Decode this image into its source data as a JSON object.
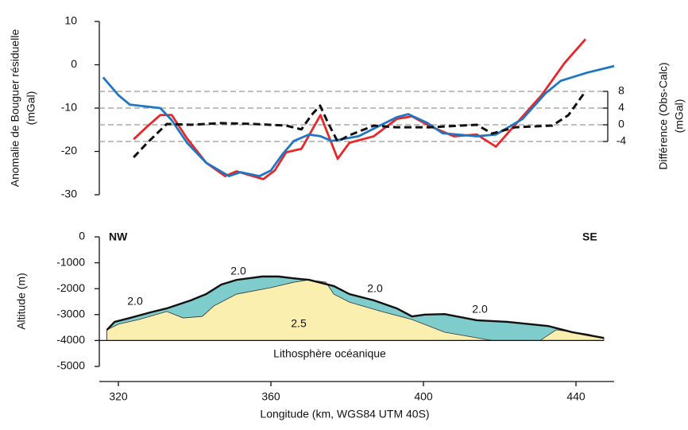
{
  "chart_data": [
    {
      "type": "line",
      "ylabel": [
        "Anomalie de Bouguer résiduelle",
        "(mGal)"
      ],
      "y2label": [
        "Différence (Obs-Calc)",
        "(mGal)"
      ],
      "xlim": [
        315,
        450
      ],
      "ylim": [
        -30,
        10
      ],
      "yticks": [
        10,
        0,
        -10,
        -20,
        -30
      ],
      "y2lim": [
        -4,
        8
      ],
      "y2ticks": [
        8,
        4,
        0,
        -4
      ],
      "y2grid": true,
      "series": [
        {
          "color": "#e8272a",
          "x": [
            324,
            327.5,
            331,
            334,
            338,
            343,
            348,
            351,
            358,
            361,
            364,
            368,
            370,
            373,
            375,
            377.5,
            380.6,
            387,
            393,
            397,
            402,
            408,
            414,
            419,
            423,
            431,
            437,
            442.5
          ],
          "values": [
            -17.2,
            -14.3,
            -11.6,
            -11.6,
            -17,
            -22.6,
            -25.7,
            -24.6,
            -26.4,
            -24.4,
            -20.2,
            -19.4,
            -16.3,
            -11.6,
            -16.1,
            -21.7,
            -18,
            -16.5,
            -12.5,
            -11.9,
            -14.3,
            -16.5,
            -16.1,
            -18.9,
            -14.9,
            -7,
            0.4,
            5.9
          ]
        },
        {
          "color": "#1f77c4",
          "x": [
            316,
            320,
            323,
            331,
            334,
            338,
            343,
            349,
            352,
            357,
            360,
            363,
            366,
            370,
            373,
            376,
            383,
            388,
            393,
            396,
            401,
            405,
            414,
            419,
            426,
            432,
            436,
            443,
            450
          ],
          "values": [
            -2.9,
            -7,
            -9.2,
            -10,
            -12.8,
            -18,
            -22.6,
            -25.7,
            -24.8,
            -25.7,
            -24.4,
            -20.7,
            -17.6,
            -16.1,
            -16.5,
            -17.6,
            -16.5,
            -14.3,
            -12.1,
            -11.4,
            -13.4,
            -15.8,
            -16.5,
            -16.1,
            -12.5,
            -6.6,
            -3.7,
            -1.8,
            -0.3
          ]
        },
        {
          "color": "#111111",
          "dashed": true,
          "axis": "y2",
          "x": [
            324,
            327.5,
            332.7,
            339,
            347,
            355.6,
            364,
            368,
            370.6,
            372.9,
            375,
            377.5,
            380.6,
            387,
            393,
            401.5,
            409.8,
            414,
            418,
            424,
            433.8,
            438,
            442
          ],
          "values": [
            -7.8,
            -4.4,
            0.2,
            0,
            0.4,
            0.2,
            -0.2,
            -1.1,
            2.3,
            4.6,
            0.4,
            -4,
            -2.5,
            -0.2,
            -0.6,
            -0.6,
            -0.2,
            0,
            -2.1,
            -0.6,
            -0.2,
            2.3,
            7.4
          ]
        }
      ]
    },
    {
      "type": "area",
      "ylabel": "Altitude (m)",
      "xlabel": "Longitude (km, WGS84 UTM 40S)",
      "xlim": [
        315,
        450
      ],
      "xticks": [
        320,
        360,
        400,
        440
      ],
      "ylim": [
        -5000,
        0
      ],
      "yticks": [
        0,
        -1000,
        -2000,
        -3000,
        -4000,
        -5000
      ],
      "base": -4000,
      "annotations": [
        "NW",
        "SE",
        "Lithosphère océanique"
      ],
      "series": [
        {
          "label": "2.0",
          "color": "#7fcccc",
          "x": [
            317,
            319,
            323,
            328.5,
            332.7,
            339,
            343,
            347,
            351,
            357.7,
            362,
            366,
            370,
            376.5,
            380.6,
            387,
            393,
            397,
            400.4,
            405.6,
            414,
            422,
            432.7,
            439,
            447.3
          ],
          "values": [
            -3590,
            -3280,
            -3130,
            -2910,
            -2760,
            -2450,
            -2210,
            -1840,
            -1660,
            -1530,
            -1530,
            -1600,
            -1660,
            -1900,
            -2210,
            -2450,
            -2760,
            -3070,
            -3000,
            -2980,
            -3220,
            -3280,
            -3440,
            -3680,
            -3900
          ]
        },
        {
          "label": "2.5",
          "color": "#fbefb0",
          "x": [
            317,
            320,
            325.4,
            332.7,
            337,
            342,
            345,
            351,
            360,
            366,
            370,
            374.4,
            376.5,
            380.6,
            389,
            397,
            405.6,
            418,
            430.6,
            434.8,
            443,
            447.3
          ],
          "values": [
            -3590,
            -3370,
            -3190,
            -2880,
            -3130,
            -3070,
            -2670,
            -2210,
            -1960,
            -1750,
            -1660,
            -1750,
            -2210,
            -2520,
            -2880,
            -3190,
            -3680,
            -4000,
            -4000,
            -3590,
            -3750,
            -3900
          ]
        }
      ]
    }
  ]
}
